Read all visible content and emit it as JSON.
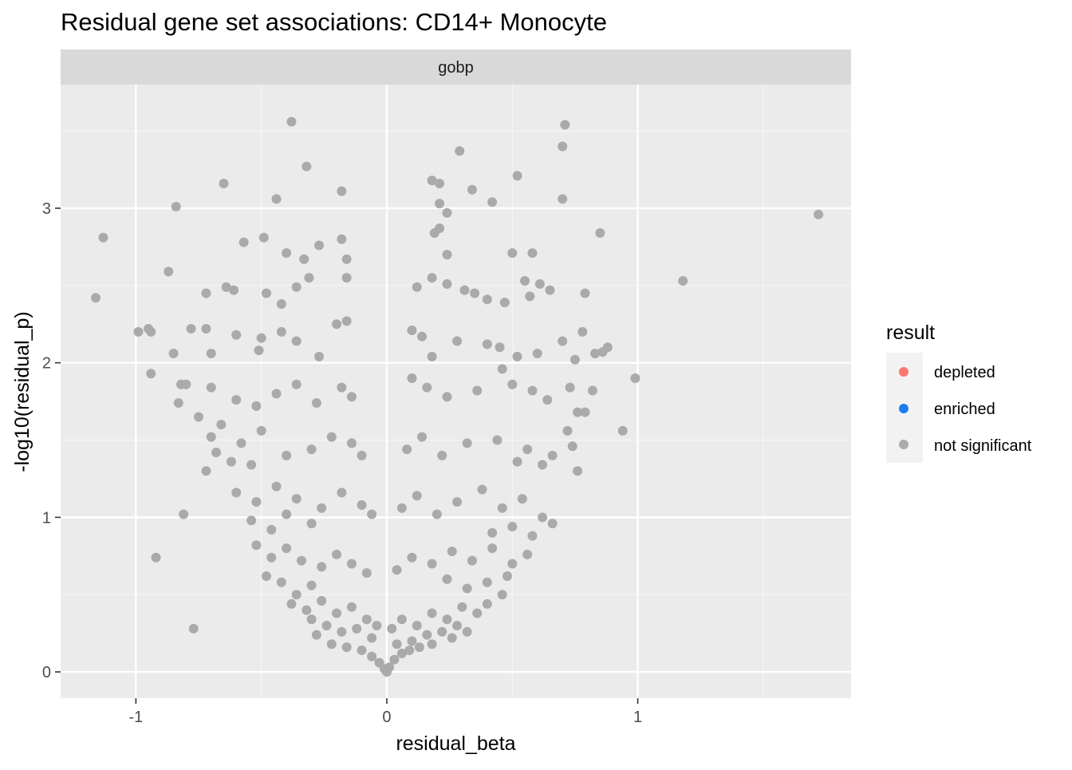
{
  "chart_data": {
    "type": "scatter",
    "title": "Residual gene set associations: CD14+ Monocyte",
    "facet": "gobp",
    "xlabel": "residual_beta",
    "ylabel": "-log10(residual_p)",
    "xlim": [
      -1.3,
      1.85
    ],
    "ylim": [
      -0.17,
      3.8
    ],
    "x_ticks": [
      -1,
      0,
      1
    ],
    "x_tick_labels": [
      "-1",
      "0",
      "1"
    ],
    "y_ticks": [
      0,
      1,
      2,
      3
    ],
    "y_tick_labels": [
      "0",
      "1",
      "2",
      "3"
    ],
    "grid": true,
    "legend": {
      "title": "result",
      "position": "right",
      "entries": [
        {
          "label": "depleted",
          "color": "#F8766D"
        },
        {
          "label": "enriched",
          "color": "#1C7CF2"
        },
        {
          "label": "not significant",
          "color": "#AAAAAA"
        }
      ]
    },
    "series": [
      {
        "legend_label": "not significant",
        "color": "#AAAAAA",
        "points": [
          [
            1.72,
            2.96
          ],
          [
            1.18,
            2.53
          ],
          [
            0.99,
            1.9
          ],
          [
            0.94,
            1.56
          ],
          [
            0.85,
            2.84
          ],
          [
            0.88,
            2.1
          ],
          [
            0.86,
            2.07
          ],
          [
            -1.16,
            2.42
          ],
          [
            -1.13,
            2.81
          ],
          [
            -0.99,
            2.2
          ],
          [
            -0.95,
            2.22
          ],
          [
            -0.94,
            2.2
          ],
          [
            -0.94,
            1.93
          ],
          [
            -0.92,
            0.74
          ],
          [
            -0.84,
            3.01
          ],
          [
            -0.87,
            2.59
          ],
          [
            -0.82,
            1.86
          ],
          [
            -0.81,
            1.02
          ],
          [
            -0.77,
            0.28
          ],
          [
            -0.65,
            3.16
          ],
          [
            -0.38,
            3.56
          ],
          [
            -0.32,
            3.27
          ],
          [
            -0.44,
            3.06
          ],
          [
            -0.18,
            3.11
          ],
          [
            0.71,
            3.54
          ],
          [
            0.7,
            3.4
          ],
          [
            0.29,
            3.37
          ],
          [
            0.52,
            3.21
          ],
          [
            0.7,
            3.06
          ],
          [
            0.42,
            3.04
          ],
          [
            0.18,
            3.18
          ],
          [
            0.21,
            3.16
          ],
          [
            0.34,
            3.12
          ],
          [
            0.21,
            3.03
          ],
          [
            0.24,
            2.97
          ],
          [
            -0.49,
            2.81
          ],
          [
            -0.57,
            2.78
          ],
          [
            -0.27,
            2.76
          ],
          [
            -0.18,
            2.8
          ],
          [
            -0.4,
            2.71
          ],
          [
            -0.33,
            2.67
          ],
          [
            -0.16,
            2.67
          ],
          [
            0.24,
            2.7
          ],
          [
            0.5,
            2.71
          ],
          [
            0.58,
            2.71
          ],
          [
            0.19,
            2.84
          ],
          [
            0.21,
            2.87
          ],
          [
            -0.64,
            2.49
          ],
          [
            -0.61,
            2.47
          ],
          [
            -0.36,
            2.49
          ],
          [
            -0.31,
            2.55
          ],
          [
            -0.16,
            2.55
          ],
          [
            -0.72,
            2.45
          ],
          [
            -0.48,
            2.45
          ],
          [
            -0.42,
            2.38
          ],
          [
            0.12,
            2.49
          ],
          [
            0.18,
            2.55
          ],
          [
            0.24,
            2.51
          ],
          [
            0.55,
            2.53
          ],
          [
            0.61,
            2.51
          ],
          [
            0.65,
            2.47
          ],
          [
            0.79,
            2.45
          ],
          [
            0.4,
            2.41
          ],
          [
            0.47,
            2.39
          ],
          [
            0.57,
            2.43
          ],
          [
            0.31,
            2.47
          ],
          [
            0.35,
            2.45
          ],
          [
            -0.72,
            2.22
          ],
          [
            -0.6,
            2.18
          ],
          [
            -0.5,
            2.16
          ],
          [
            -0.42,
            2.2
          ],
          [
            -0.36,
            2.14
          ],
          [
            -0.2,
            2.25
          ],
          [
            -0.16,
            2.27
          ],
          [
            -0.27,
            2.04
          ],
          [
            -0.51,
            2.08
          ],
          [
            -0.7,
            2.06
          ],
          [
            -0.85,
            2.06
          ],
          [
            -0.78,
            2.22
          ],
          [
            0.1,
            2.21
          ],
          [
            0.14,
            2.17
          ],
          [
            0.18,
            2.04
          ],
          [
            0.28,
            2.14
          ],
          [
            0.4,
            2.12
          ],
          [
            0.45,
            2.1
          ],
          [
            0.52,
            2.04
          ],
          [
            0.6,
            2.06
          ],
          [
            0.7,
            2.14
          ],
          [
            0.78,
            2.2
          ],
          [
            0.75,
            2.02
          ],
          [
            0.83,
            2.06
          ],
          [
            -0.7,
            1.84
          ],
          [
            -0.6,
            1.76
          ],
          [
            -0.52,
            1.72
          ],
          [
            -0.44,
            1.8
          ],
          [
            -0.36,
            1.86
          ],
          [
            -0.28,
            1.74
          ],
          [
            -0.18,
            1.84
          ],
          [
            -0.14,
            1.78
          ],
          [
            -0.8,
            1.86
          ],
          [
            -0.83,
            1.74
          ],
          [
            -0.75,
            1.65
          ],
          [
            -0.66,
            1.6
          ],
          [
            0.1,
            1.9
          ],
          [
            0.16,
            1.84
          ],
          [
            0.24,
            1.78
          ],
          [
            0.36,
            1.82
          ],
          [
            0.46,
            1.96
          ],
          [
            0.5,
            1.86
          ],
          [
            0.58,
            1.82
          ],
          [
            0.64,
            1.76
          ],
          [
            0.73,
            1.84
          ],
          [
            0.76,
            1.68
          ],
          [
            0.79,
            1.68
          ],
          [
            0.82,
            1.82
          ],
          [
            -0.7,
            1.52
          ],
          [
            -0.58,
            1.48
          ],
          [
            -0.5,
            1.56
          ],
          [
            -0.4,
            1.4
          ],
          [
            -0.3,
            1.44
          ],
          [
            -0.22,
            1.52
          ],
          [
            -0.14,
            1.48
          ],
          [
            -0.1,
            1.4
          ],
          [
            -0.62,
            1.36
          ],
          [
            -0.72,
            1.3
          ],
          [
            -0.68,
            1.42
          ],
          [
            -0.54,
            1.34
          ],
          [
            0.08,
            1.44
          ],
          [
            0.14,
            1.52
          ],
          [
            0.22,
            1.4
          ],
          [
            0.32,
            1.48
          ],
          [
            0.44,
            1.5
          ],
          [
            0.56,
            1.44
          ],
          [
            0.66,
            1.4
          ],
          [
            0.72,
            1.56
          ],
          [
            0.76,
            1.3
          ],
          [
            0.74,
            1.46
          ],
          [
            0.62,
            1.34
          ],
          [
            0.52,
            1.36
          ],
          [
            -0.6,
            1.16
          ],
          [
            -0.52,
            1.1
          ],
          [
            -0.44,
            1.2
          ],
          [
            -0.36,
            1.12
          ],
          [
            -0.26,
            1.06
          ],
          [
            -0.18,
            1.16
          ],
          [
            -0.1,
            1.08
          ],
          [
            -0.06,
            1.02
          ],
          [
            -0.54,
            0.98
          ],
          [
            -0.46,
            0.92
          ],
          [
            -0.4,
            1.02
          ],
          [
            -0.3,
            0.96
          ],
          [
            0.06,
            1.06
          ],
          [
            0.12,
            1.14
          ],
          [
            0.2,
            1.02
          ],
          [
            0.28,
            1.1
          ],
          [
            0.38,
            1.18
          ],
          [
            0.46,
            1.06
          ],
          [
            0.54,
            1.12
          ],
          [
            0.62,
            1.0
          ],
          [
            0.66,
            0.96
          ],
          [
            0.58,
            0.88
          ],
          [
            0.5,
            0.94
          ],
          [
            0.42,
            0.9
          ],
          [
            -0.52,
            0.82
          ],
          [
            -0.46,
            0.74
          ],
          [
            -0.4,
            0.8
          ],
          [
            -0.34,
            0.72
          ],
          [
            -0.26,
            0.68
          ],
          [
            -0.2,
            0.76
          ],
          [
            -0.14,
            0.7
          ],
          [
            -0.08,
            0.64
          ],
          [
            -0.48,
            0.62
          ],
          [
            -0.42,
            0.58
          ],
          [
            -0.36,
            0.5
          ],
          [
            -0.3,
            0.56
          ],
          [
            0.04,
            0.66
          ],
          [
            0.1,
            0.74
          ],
          [
            0.18,
            0.7
          ],
          [
            0.26,
            0.78
          ],
          [
            0.34,
            0.72
          ],
          [
            0.42,
            0.8
          ],
          [
            0.5,
            0.7
          ],
          [
            0.56,
            0.76
          ],
          [
            0.48,
            0.62
          ],
          [
            0.4,
            0.58
          ],
          [
            0.32,
            0.54
          ],
          [
            0.24,
            0.6
          ],
          [
            -0.38,
            0.44
          ],
          [
            -0.32,
            0.4
          ],
          [
            -0.26,
            0.46
          ],
          [
            -0.2,
            0.38
          ],
          [
            -0.14,
            0.42
          ],
          [
            -0.08,
            0.34
          ],
          [
            -0.04,
            0.3
          ],
          [
            -0.3,
            0.34
          ],
          [
            -0.24,
            0.3
          ],
          [
            -0.18,
            0.26
          ],
          [
            -0.12,
            0.28
          ],
          [
            -0.06,
            0.22
          ],
          [
            0.02,
            0.28
          ],
          [
            0.06,
            0.34
          ],
          [
            0.12,
            0.3
          ],
          [
            0.18,
            0.38
          ],
          [
            0.24,
            0.34
          ],
          [
            0.3,
            0.42
          ],
          [
            0.36,
            0.38
          ],
          [
            0.28,
            0.3
          ],
          [
            0.22,
            0.26
          ],
          [
            0.16,
            0.24
          ],
          [
            0.1,
            0.2
          ],
          [
            0.04,
            0.18
          ],
          [
            -0.28,
            0.24
          ],
          [
            -0.22,
            0.18
          ],
          [
            -0.16,
            0.16
          ],
          [
            -0.1,
            0.14
          ],
          [
            -0.06,
            0.1
          ],
          [
            -0.03,
            0.06
          ],
          [
            -0.01,
            0.02
          ],
          [
            0.0,
            0.0
          ],
          [
            0.01,
            0.03
          ],
          [
            0.03,
            0.08
          ],
          [
            0.06,
            0.12
          ],
          [
            0.09,
            0.14
          ],
          [
            0.13,
            0.16
          ],
          [
            0.18,
            0.18
          ],
          [
            0.26,
            0.22
          ],
          [
            0.32,
            0.26
          ],
          [
            0.4,
            0.44
          ],
          [
            0.46,
            0.5
          ]
        ]
      }
    ]
  }
}
